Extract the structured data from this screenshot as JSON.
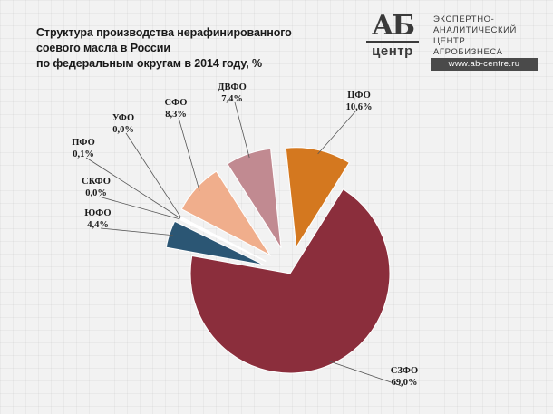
{
  "title_lines": [
    "Структура производства нерафинированного",
    "соевого масла в России",
    "по федеральным округам в 2014 году, %"
  ],
  "logo": {
    "mark_top": "АБ",
    "mark_bottom": "центр",
    "lines": [
      "ЭКСПЕРТНО-",
      "АНАЛИТИЧЕСКИЙ",
      "ЦЕНТР",
      "АГРОБИЗНЕСА"
    ],
    "url": "www.ab-centre.ru"
  },
  "chart_data": {
    "type": "pie",
    "title": "Структура производства нерафинированного соевого масла в России по федеральным округам в 2014 году, %",
    "slices": [
      {
        "name": "ЦФО",
        "value": 10.6,
        "label": "10,6%",
        "color": "#d4781f",
        "explode": true
      },
      {
        "name": "СЗФО",
        "value": 69.0,
        "label": "69,0%",
        "color": "#8b2e3c",
        "explode": false
      },
      {
        "name": "ЮФО",
        "value": 4.4,
        "label": "4,4%",
        "color": "#2b5674",
        "explode": true
      },
      {
        "name": "СКФО",
        "value": 0.0,
        "label": "0,0%",
        "color": "#7a7a7a",
        "explode": true
      },
      {
        "name": "ПФО",
        "value": 0.1,
        "label": "0,1%",
        "color": "#6a6a6a",
        "explode": true
      },
      {
        "name": "УФО",
        "value": 0.0,
        "label": "0,0%",
        "color": "#7a7a7a",
        "explode": true
      },
      {
        "name": "СФО",
        "value": 8.3,
        "label": "8,3%",
        "color": "#f0ae8c",
        "explode": true
      },
      {
        "name": "ДВФО",
        "value": 7.4,
        "label": "7,4%",
        "color": "#c18a91",
        "explode": true
      }
    ],
    "legend": "none"
  }
}
